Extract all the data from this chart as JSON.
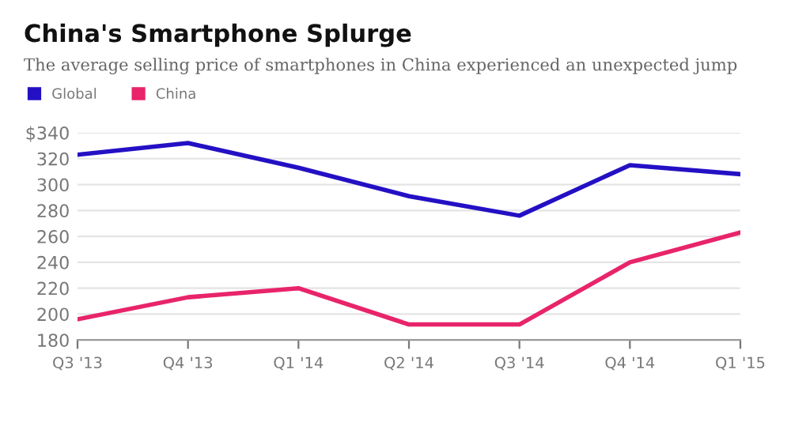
{
  "chart_data": {
    "type": "line",
    "title": "China's Smartphone Splurge",
    "subtitle": "The average selling price of smartphones in China experienced an unexpected jump",
    "categories": [
      "Q3 '13",
      "Q4 '13",
      "Q1 '14",
      "Q2 '14",
      "Q3 '14",
      "Q4 '14",
      "Q1 '15"
    ],
    "series": [
      {
        "name": "Global",
        "color": "#2410c4",
        "values": [
          323,
          332,
          313,
          291,
          276,
          315,
          308
        ]
      },
      {
        "name": "China",
        "color": "#e8246a",
        "values": [
          196,
          213,
          220,
          192,
          192,
          240,
          263
        ]
      }
    ],
    "ylim": [
      180,
      340
    ],
    "yticks": [
      180,
      200,
      220,
      240,
      260,
      280,
      300,
      320,
      {
        "value": 340,
        "label": "$340"
      }
    ],
    "grid": "y",
    "legend": "top left",
    "marker": "none",
    "line_style": "solid"
  }
}
